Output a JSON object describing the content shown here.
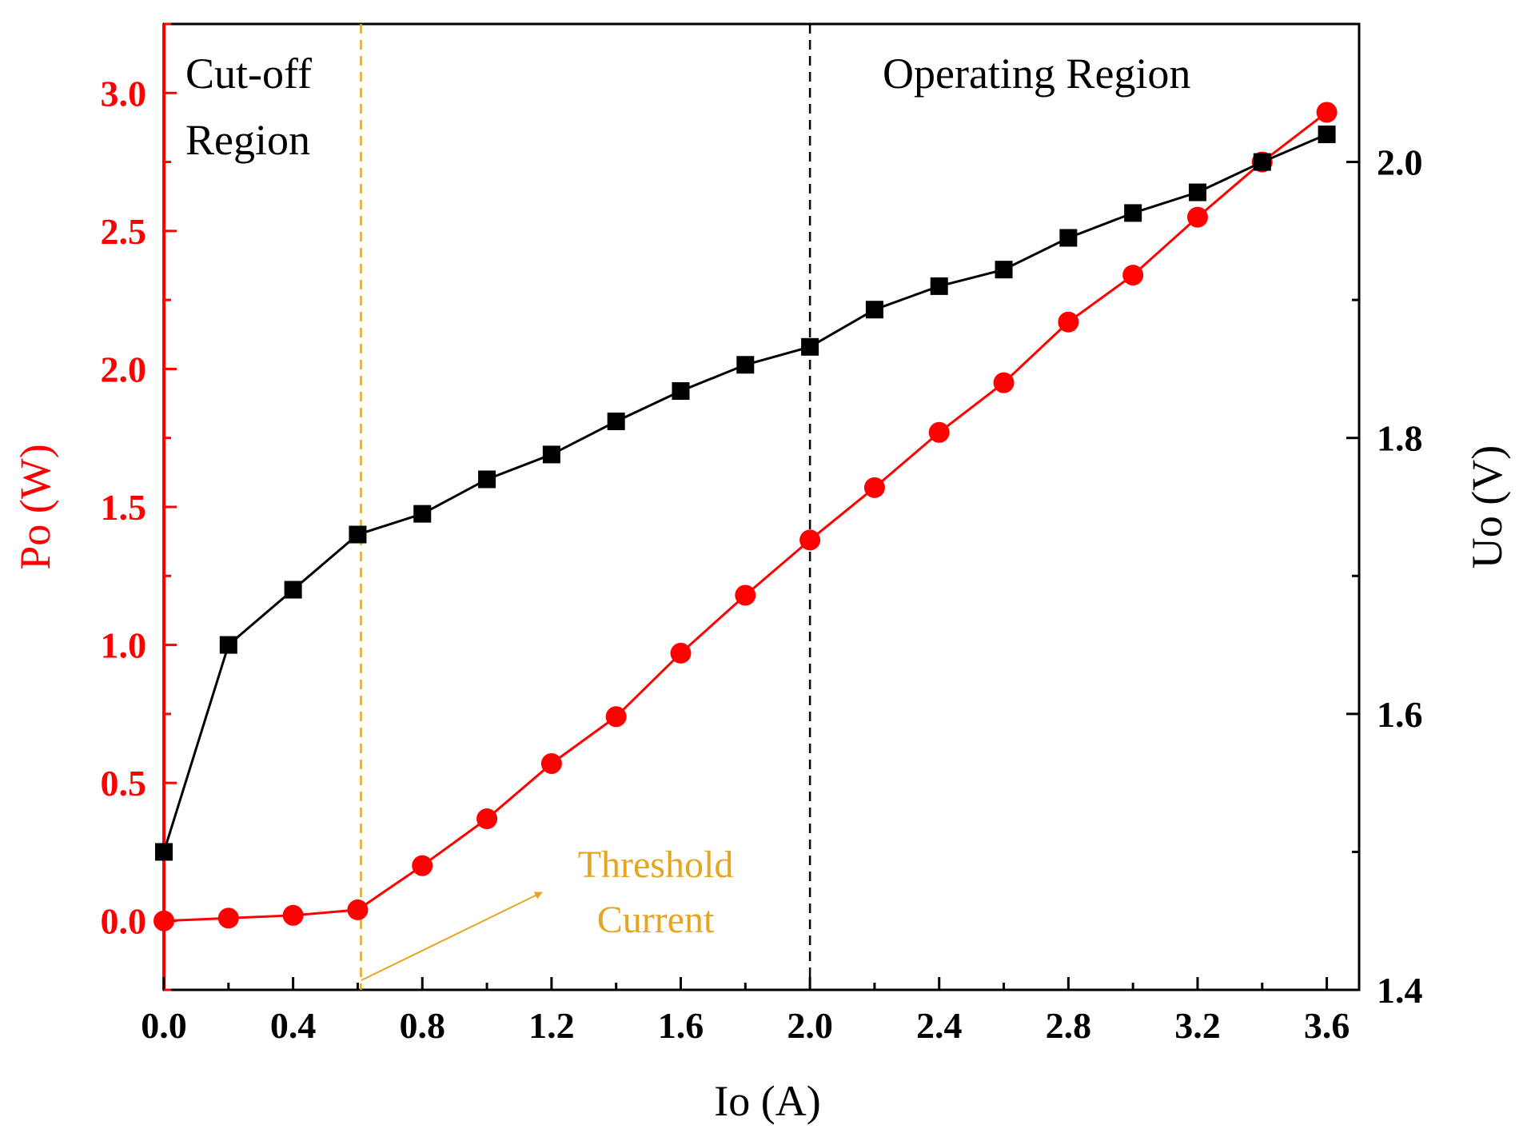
{
  "chart_data": {
    "type": "line",
    "xlabel": "Io (A)",
    "ylabel_left": "Po (W)",
    "ylabel_right": "Uo (V)",
    "xlim": [
      0,
      3.7
    ],
    "ylim_left": [
      -0.25,
      3.25
    ],
    "ylim_right": [
      1.4,
      2.1
    ],
    "x_ticks": [
      "0.0",
      "0.4",
      "0.8",
      "1.2",
      "1.6",
      "2.0",
      "2.4",
      "2.8",
      "3.2",
      "3.6"
    ],
    "y_left_ticks": [
      "0.0",
      "0.5",
      "1.0",
      "1.5",
      "2.0",
      "2.5",
      "3.0"
    ],
    "y_right_ticks": [
      "1.4",
      "1.6",
      "1.8",
      "2.0"
    ],
    "x": [
      0.0,
      0.2,
      0.4,
      0.6,
      0.8,
      1.0,
      1.2,
      1.4,
      1.6,
      1.8,
      2.0,
      2.2,
      2.4,
      2.6,
      2.8,
      3.0,
      3.2,
      3.4,
      3.6
    ],
    "series": [
      {
        "name": "Po (W)",
        "axis": "left",
        "color": "#ff0000",
        "marker": "circle",
        "values": [
          0.0,
          0.01,
          0.02,
          0.04,
          0.2,
          0.37,
          0.57,
          0.74,
          0.97,
          1.18,
          1.38,
          1.57,
          1.77,
          1.95,
          2.17,
          2.34,
          2.55,
          2.75,
          2.93
        ]
      },
      {
        "name": "Uo (V)",
        "axis": "right",
        "color": "#000000",
        "marker": "square",
        "values": [
          1.5,
          1.65,
          1.69,
          1.73,
          1.745,
          1.77,
          1.788,
          1.812,
          1.834,
          1.853,
          1.866,
          1.893,
          1.91,
          1.922,
          1.945,
          1.963,
          1.978,
          2.0,
          2.02
        ]
      }
    ],
    "annotations": {
      "cutoff_line_x": 0.61,
      "operating_line_x": 2.0,
      "cutoff_label_1": "Cut-off",
      "cutoff_label_2": "Region",
      "operating_label": "Operating Region",
      "threshold_label_1": "Threshold",
      "threshold_label_2": "Current",
      "threshold_color": "#e6a520"
    }
  }
}
